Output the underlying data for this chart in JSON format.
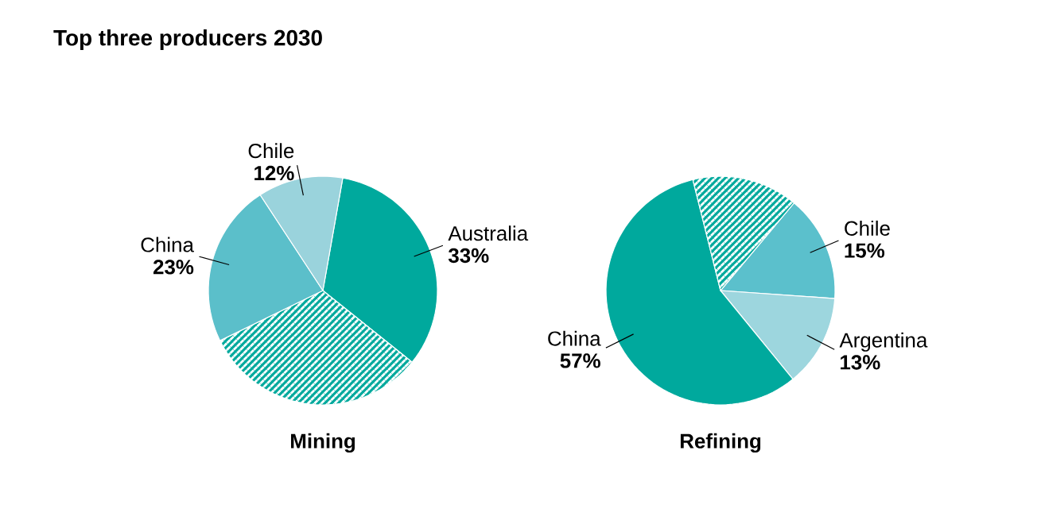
{
  "chart_data": [
    {
      "type": "pie",
      "title": "Top three producers 2030",
      "xlabel": "Mining",
      "categories": [
        "Australia",
        null,
        "China",
        "Chile"
      ],
      "values": [
        33,
        32,
        23,
        12
      ],
      "value_labels": [
        "33%",
        null,
        "23%",
        "12%"
      ],
      "colors": [
        "#00a99d",
        "#00a99d",
        "#5bbfca",
        "#9ad3dc"
      ]
    },
    {
      "type": "pie",
      "xlabel": "Refining",
      "categories": [
        "Chile",
        "Argentina",
        "China",
        null
      ],
      "values": [
        15,
        13,
        57,
        15
      ],
      "value_labels": [
        "15%",
        "13%",
        "57%",
        null
      ],
      "colors": [
        "#5bc0cc",
        "#9dd6de",
        "#00a99d",
        "#00a99d"
      ]
    }
  ]
}
